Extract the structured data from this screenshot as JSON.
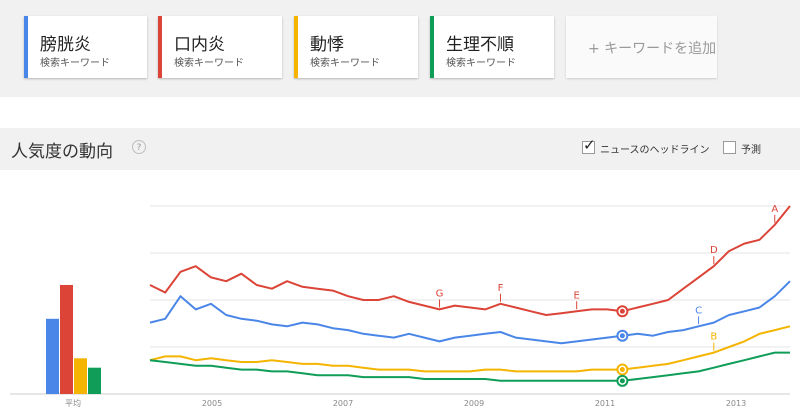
{
  "keywords": [
    {
      "term": "膀胱炎",
      "sub": "検索キーワード",
      "color": "#4a86e8"
    },
    {
      "term": "口内炎",
      "sub": "検索キーワード",
      "color": "#db4437"
    },
    {
      "term": "動悸",
      "sub": "検索キーワード",
      "color": "#f4b400"
    },
    {
      "term": "生理不順",
      "sub": "検索キーワード",
      "color": "#0f9d58"
    }
  ],
  "add_keyword": "+ キーワードを追加",
  "section": {
    "title": "人気度の動向",
    "help_icon": "?",
    "headlines_label": "ニュースのヘッドライン",
    "headlines_checked": true,
    "forecast_label": "予測",
    "forecast_checked": false
  },
  "chart_data": {
    "type": "line",
    "x_ticks": [
      "2005",
      "2007",
      "2009",
      "2011",
      "2013"
    ],
    "average_label": "平均",
    "averages": [
      40,
      58,
      19,
      14
    ],
    "ylim": [
      0,
      100
    ],
    "series": [
      {
        "name": "膀胱炎",
        "color": "#4a86e8",
        "values": [
          38,
          40,
          52,
          45,
          48,
          42,
          40,
          39,
          37,
          36,
          38,
          37,
          35,
          34,
          32,
          31,
          30,
          32,
          30,
          28,
          30,
          31,
          32,
          33,
          30,
          29,
          28,
          27,
          28,
          29,
          30,
          31,
          32,
          31,
          33,
          34,
          36,
          38,
          42,
          44,
          46,
          52,
          60
        ]
      },
      {
        "name": "口内炎",
        "color": "#db4437",
        "values": [
          58,
          54,
          65,
          68,
          62,
          60,
          64,
          58,
          56,
          60,
          57,
          56,
          55,
          52,
          50,
          50,
          52,
          49,
          47,
          45,
          47,
          46,
          45,
          48,
          46,
          44,
          42,
          43,
          44,
          45,
          45,
          44,
          46,
          48,
          50,
          56,
          62,
          68,
          76,
          80,
          82,
          90,
          100
        ]
      },
      {
        "name": "動悸",
        "color": "#f4b400",
        "values": [
          18,
          20,
          20,
          18,
          19,
          18,
          17,
          17,
          18,
          17,
          16,
          16,
          15,
          15,
          14,
          13,
          13,
          13,
          12,
          12,
          12,
          12,
          13,
          13,
          12,
          12,
          12,
          12,
          12,
          13,
          13,
          13,
          14,
          15,
          16,
          18,
          20,
          22,
          25,
          28,
          32,
          34,
          36
        ]
      },
      {
        "name": "生理不順",
        "color": "#0f9d58",
        "values": [
          18,
          17,
          16,
          15,
          15,
          14,
          13,
          13,
          12,
          12,
          11,
          10,
          10,
          10,
          9,
          9,
          9,
          9,
          8,
          8,
          8,
          8,
          8,
          7,
          7,
          7,
          7,
          7,
          7,
          7,
          7,
          7,
          8,
          9,
          10,
          11,
          12,
          14,
          16,
          18,
          20,
          22,
          22
        ]
      }
    ],
    "headline_markers": [
      {
        "label": "A",
        "x_index": 41,
        "series": 1
      },
      {
        "label": "B",
        "x_index": 37,
        "series": 2
      },
      {
        "label": "C",
        "x_index": 36,
        "series": 0
      },
      {
        "label": "D",
        "x_index": 37,
        "series": 1
      },
      {
        "label": "E",
        "x_index": 28,
        "series": 1
      },
      {
        "label": "F",
        "x_index": 23,
        "series": 1
      },
      {
        "label": "G",
        "x_index": 19,
        "series": 1
      }
    ]
  }
}
